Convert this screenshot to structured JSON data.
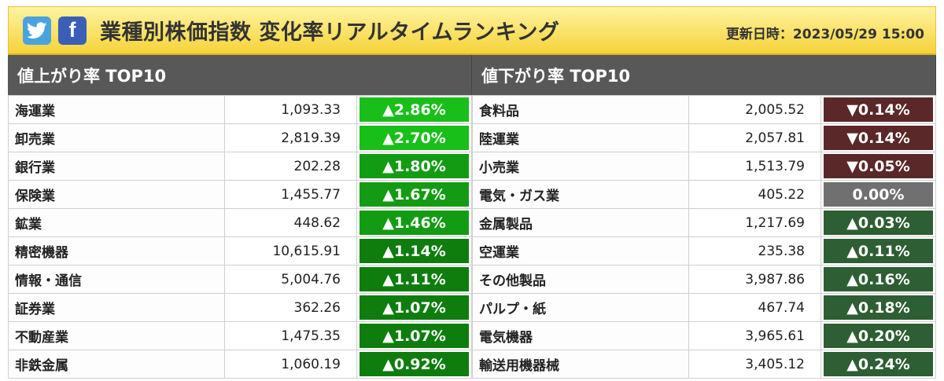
{
  "header": {
    "title": "業種別株価指数 変化率リアルタイムランキング",
    "updated": "更新日時：2023/05/29 15:00",
    "twitter_icon": "twitter-bird-icon",
    "facebook_icon": "facebook-f-icon",
    "facebook_glyph": "f"
  },
  "colors": {
    "gain_strong": "#19bf19",
    "gain_mid": "#139c13",
    "gain_low": "#0e7d0e",
    "gain_small": "#2e5e33",
    "loss": "#5a2828",
    "flat": "#707070"
  },
  "gainers": {
    "heading": "値上がり率 TOP10",
    "rows": [
      {
        "name": "海運業",
        "value": "1,093.33",
        "change": "▲2.86%",
        "tone": "gain_strong"
      },
      {
        "name": "卸売業",
        "value": "2,819.39",
        "change": "▲2.70%",
        "tone": "gain_strong"
      },
      {
        "name": "銀行業",
        "value": "202.28",
        "change": "▲1.80%",
        "tone": "gain_mid"
      },
      {
        "name": "保険業",
        "value": "1,455.77",
        "change": "▲1.67%",
        "tone": "gain_mid"
      },
      {
        "name": "鉱業",
        "value": "448.62",
        "change": "▲1.46%",
        "tone": "gain_mid"
      },
      {
        "name": "精密機器",
        "value": "10,615.91",
        "change": "▲1.14%",
        "tone": "gain_low"
      },
      {
        "name": "情報・通信",
        "value": "5,004.76",
        "change": "▲1.11%",
        "tone": "gain_low"
      },
      {
        "name": "証券業",
        "value": "362.26",
        "change": "▲1.07%",
        "tone": "gain_low"
      },
      {
        "name": "不動産業",
        "value": "1,475.35",
        "change": "▲1.07%",
        "tone": "gain_low"
      },
      {
        "name": "非鉄金属",
        "value": "1,060.19",
        "change": "▲0.92%",
        "tone": "gain_low"
      }
    ]
  },
  "losers": {
    "heading": "値下がり率 TOP10",
    "rows": [
      {
        "name": "食料品",
        "value": "2,005.52",
        "change": "▼0.14%",
        "tone": "loss"
      },
      {
        "name": "陸運業",
        "value": "2,057.81",
        "change": "▼0.14%",
        "tone": "loss"
      },
      {
        "name": "小売業",
        "value": "1,513.79",
        "change": "▼0.05%",
        "tone": "loss"
      },
      {
        "name": "電気・ガス業",
        "value": "405.22",
        "change": "0.00%",
        "tone": "flat"
      },
      {
        "name": "金属製品",
        "value": "1,217.69",
        "change": "▲0.03%",
        "tone": "gain_small"
      },
      {
        "name": "空運業",
        "value": "235.38",
        "change": "▲0.11%",
        "tone": "gain_small"
      },
      {
        "name": "その他製品",
        "value": "3,987.86",
        "change": "▲0.16%",
        "tone": "gain_small"
      },
      {
        "name": "パルプ・紙",
        "value": "467.74",
        "change": "▲0.18%",
        "tone": "gain_small"
      },
      {
        "name": "電気機器",
        "value": "3,965.61",
        "change": "▲0.20%",
        "tone": "gain_small"
      },
      {
        "name": "輸送用機器械",
        "value": "3,405.12",
        "change": "▲0.24%",
        "tone": "gain_small"
      }
    ]
  }
}
